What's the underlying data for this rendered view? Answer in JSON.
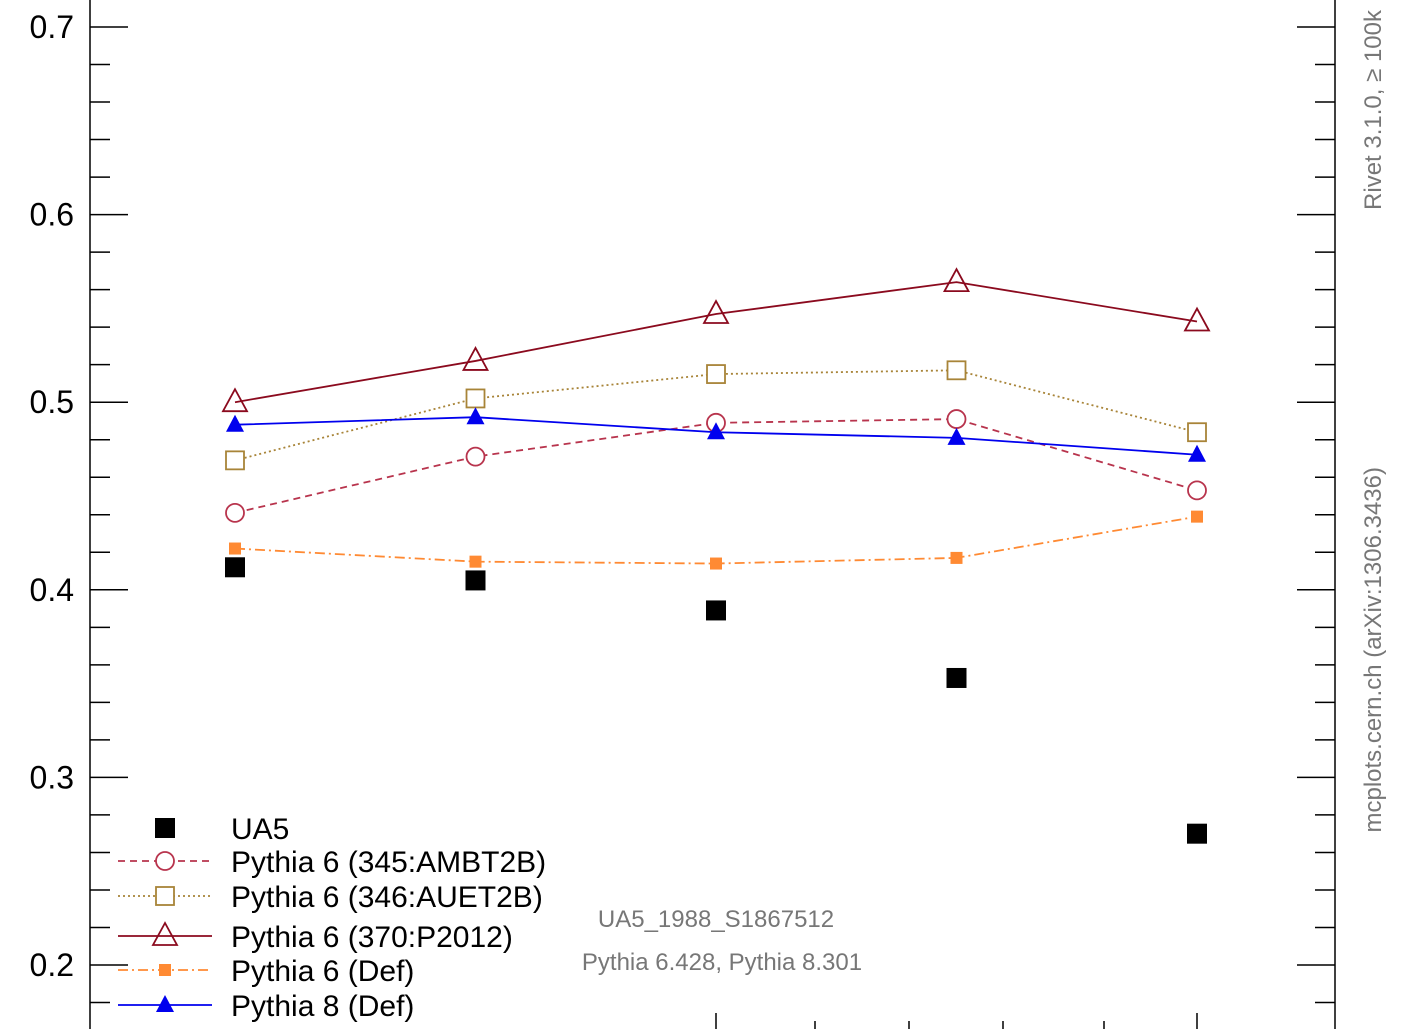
{
  "chart_data": {
    "type": "line",
    "x": [
      1,
      2,
      3,
      4,
      5
    ],
    "ylim": [
      0.16,
      0.72
    ],
    "yticks": [
      "0.2",
      "0.3",
      "0.4",
      "0.5",
      "0.6",
      "0.7"
    ],
    "grid": false,
    "legend_position": "bottom-left",
    "series": [
      {
        "name": "UA5",
        "values": [
          0.412,
          0.405,
          0.389,
          0.353,
          0.27
        ],
        "color": "#000000",
        "marker": "filled-square",
        "line": "none"
      },
      {
        "name": "Pythia 6 (345:AMBT2B)",
        "values": [
          0.441,
          0.471,
          0.489,
          0.491,
          0.453
        ],
        "color": "#b8344d",
        "marker": "open-circle",
        "line": "dashed"
      },
      {
        "name": "Pythia 6 (346:AUET2B)",
        "values": [
          0.469,
          0.502,
          0.515,
          0.517,
          0.484
        ],
        "color": "#a88438",
        "marker": "open-square",
        "line": "dotted"
      },
      {
        "name": "Pythia 6 (370:P2012)",
        "values": [
          0.5,
          0.522,
          0.547,
          0.564,
          0.543
        ],
        "color": "#8b0a1e",
        "marker": "open-triangle",
        "line": "solid"
      },
      {
        "name": "Pythia 6 (Def)",
        "values": [
          0.422,
          0.415,
          0.414,
          0.417,
          0.439
        ],
        "color": "#ff8a33",
        "marker": "filled-square",
        "line": "dashdot"
      },
      {
        "name": "Pythia 8 (Def)",
        "values": [
          0.488,
          0.492,
          0.484,
          0.481,
          0.472
        ],
        "color": "#0000ee",
        "marker": "filled-triangle",
        "line": "solid"
      }
    ]
  },
  "annotations": {
    "analysis_id": "UA5_1988_S1867512",
    "generators": "Pythia 6.428, Pythia 8.301",
    "side_label_rivet": "Rivet 3.1.0, ≥ 100k",
    "side_label_source": "mcplots.cern.ch (arXiv:1306.3436)"
  }
}
